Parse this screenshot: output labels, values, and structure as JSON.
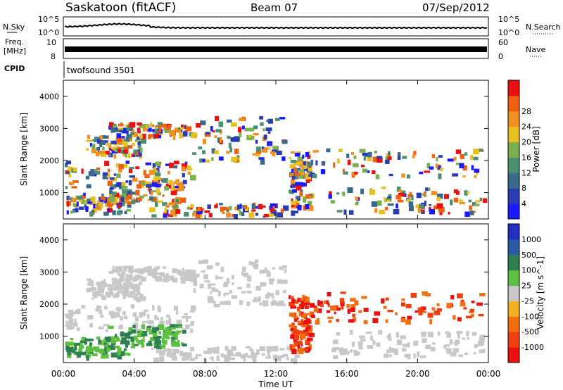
{
  "header": {
    "station": "Saskatoon (fitACF)",
    "beam": "Beam 07",
    "date": "07/Sep/2012"
  },
  "strips": {
    "nsky_label": "N.Sky",
    "nsky_ticks": [
      "10^5",
      "10^0"
    ],
    "nsearch_label": "N.Search",
    "nsearch_ticks": [
      "10^5",
      "10^0"
    ],
    "freq_label_1": "Freq.",
    "freq_label_2": "[MHz]",
    "freq_ticks": [
      "10",
      "8"
    ],
    "nave_label": "Nave",
    "nave_ticks": [
      "60",
      "0"
    ],
    "cpid_label": "CPID",
    "cpid_value": "twofsound 3501"
  },
  "chart_data": [
    {
      "type": "heatmap",
      "panel": "power",
      "ylabel": "Slant Range [km]",
      "yticks": [
        1000,
        2000,
        3000,
        4000
      ],
      "ylim": [
        180,
        4500
      ],
      "colorbar_label": "Power [dB]",
      "colorbar_ticks": [
        4,
        8,
        12,
        16,
        20,
        24,
        28
      ],
      "colorbar_colors": [
        "#1a1aff",
        "#2a3db0",
        "#3a6a8a",
        "#4a9070",
        "#7ab050",
        "#e8c020",
        "#f09020",
        "#f06010",
        "#e81010"
      ]
    },
    {
      "type": "heatmap",
      "panel": "velocity",
      "ylabel": "Slant Range [km]",
      "yticks": [
        1000,
        2000,
        3000,
        4000
      ],
      "ylim": [
        180,
        4500
      ],
      "colorbar_label": "Velocity [m s^-1]",
      "colorbar_ticks": [
        "1000",
        "500",
        "100",
        "25",
        "-25",
        "-100",
        "-500",
        "-1000"
      ],
      "colorbar_colors": [
        "#2030c0",
        "#2a5aa0",
        "#2f8050",
        "#5ec040",
        "#c8c8c8",
        "#f0b020",
        "#f07010",
        "#f04010",
        "#e81010"
      ]
    }
  ],
  "x_axis": {
    "label": "Time UT",
    "ticks": [
      "00:00",
      "04:00",
      "08:00",
      "12:00",
      "16:00",
      "20:00",
      "00:00"
    ]
  }
}
